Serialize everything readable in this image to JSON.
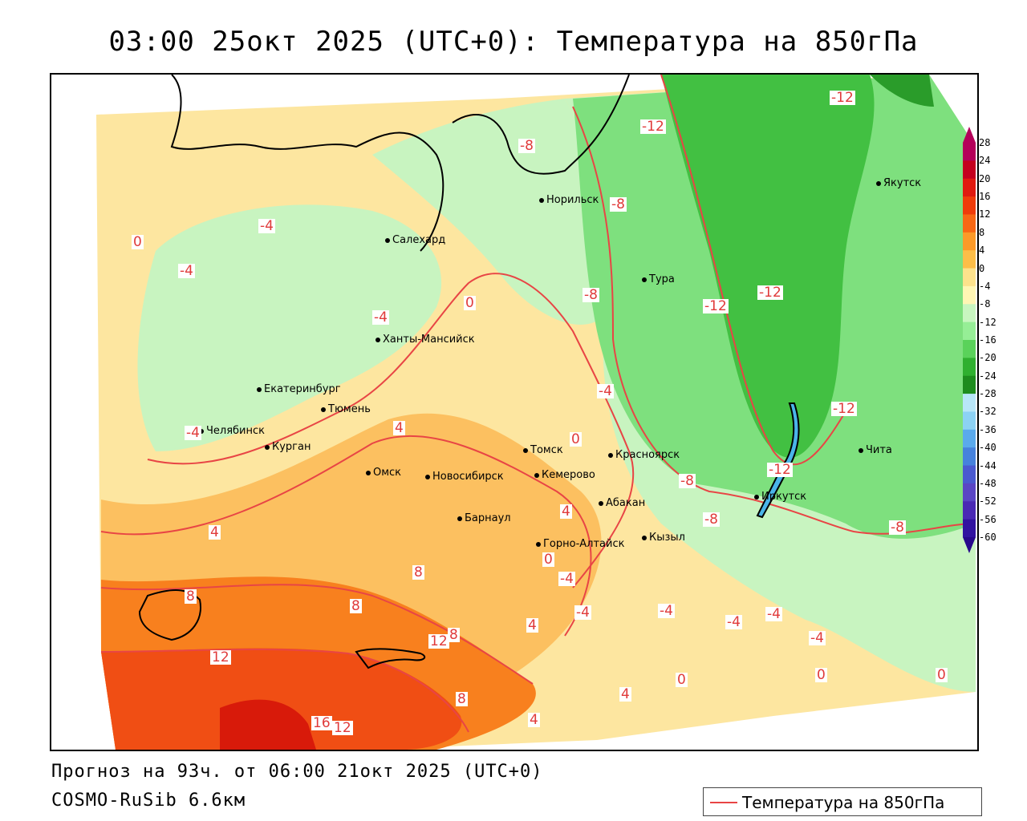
{
  "title": "03:00 25окт 2025 (UTC+0): Температура на 850гПа",
  "footer": {
    "forecast": "Прогноз на 93ч. от 06:00 21окт 2025 (UTC+0)",
    "model": "COSMO-RuSib 6.6км"
  },
  "legend": {
    "label": "Температура на 850гПа",
    "line_color": "#e84545"
  },
  "colorbar": {
    "ticks": [
      "28",
      "24",
      "20",
      "16",
      "12",
      "8",
      "4",
      "0",
      "-4",
      "-8",
      "-12",
      "-16",
      "-20",
      "-24",
      "-28",
      "-32",
      "-36",
      "-40",
      "-44",
      "-48",
      "-52",
      "-56",
      "-60"
    ],
    "colors": [
      "#b4005a",
      "#c4001e",
      "#e01a10",
      "#f03c0a",
      "#f86814",
      "#fc9a28",
      "#fdbe48",
      "#fde28c",
      "#fff6b4",
      "#c8f6c0",
      "#96ee96",
      "#5ad25a",
      "#30b030",
      "#1e8c1e",
      "#b8e6f8",
      "#8cd2f4",
      "#5aaaec",
      "#4682dc",
      "#4a5ad0",
      "#5a46c4",
      "#4a2ab4",
      "#3214a0",
      "#28088c"
    ]
  },
  "cities": [
    {
      "name": "Салехард"
    },
    {
      "name": "Норильск"
    },
    {
      "name": "Якутск"
    },
    {
      "name": "Тура"
    },
    {
      "name": "Ханты-Мансийск"
    },
    {
      "name": "Екатеринбург"
    },
    {
      "name": "Тюмень"
    },
    {
      "name": "Челябинск"
    },
    {
      "name": "Курган"
    },
    {
      "name": "Омск"
    },
    {
      "name": "Новосибирск"
    },
    {
      "name": "Томск"
    },
    {
      "name": "Кемерово"
    },
    {
      "name": "Красноярск"
    },
    {
      "name": "Абакан"
    },
    {
      "name": "Барнаул"
    },
    {
      "name": "Горно-Алтайск"
    },
    {
      "name": "Кызыл"
    },
    {
      "name": "Иркутск"
    },
    {
      "name": "Чита"
    }
  ],
  "isolines": [
    "-12",
    "-12",
    "-12",
    "-12",
    "-12",
    "-12",
    "-8",
    "-8",
    "-8",
    "-8",
    "-8",
    "-8",
    "-4",
    "-4",
    "-4",
    "-4",
    "-4",
    "-4",
    "-4",
    "-4",
    "-4",
    "-4",
    "-4",
    "0",
    "0",
    "0",
    "0",
    "0",
    "0",
    "0",
    "4",
    "4",
    "4",
    "4",
    "4",
    "4",
    "8",
    "8",
    "8",
    "8",
    "8",
    "12",
    "12",
    "12",
    "16"
  ]
}
